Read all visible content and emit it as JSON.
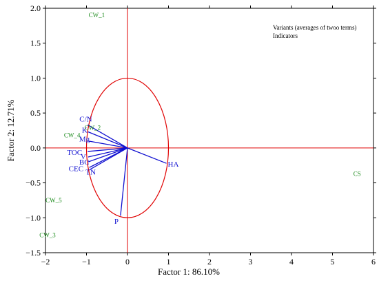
{
  "chart_data": {
    "type": "scatter",
    "subtype": "pca-biplot",
    "xlabel": "Factor 1: 86.10%",
    "ylabel": "Factor 2: 12.71%",
    "xlim": [
      -2,
      6
    ],
    "ylim": [
      -1.5,
      2.0
    ],
    "x_ticks": [
      -2,
      -1,
      0,
      1,
      2,
      3,
      4,
      5,
      6
    ],
    "x_tick_labels": [
      "−2",
      "−1",
      "0",
      "1",
      "2",
      "3",
      "4",
      "5",
      "6"
    ],
    "y_ticks": [
      -1.5,
      -1.0,
      -0.5,
      0.0,
      0.5,
      1.0,
      1.5,
      2.0
    ],
    "y_tick_labels": [
      "−1.5",
      "−1.0",
      "−0.5",
      "0.0",
      "0.5",
      "1.0",
      "1.5",
      "2.0"
    ],
    "grid": false,
    "legend_position": "top-right",
    "legend": [
      "Variants (averages of twoo terms)",
      "Indicators"
    ],
    "unit_circle": true,
    "colors": {
      "axes": "#000000",
      "zero_lines": "#e00000",
      "circle": "#e00000",
      "indicators": "#1010d0",
      "variants": "#1a8a1a"
    },
    "variants": [
      {
        "name": "CW_1",
        "x": -0.75,
        "y": 1.9
      },
      {
        "name": "CW_2",
        "x": -0.85,
        "y": 0.29
      },
      {
        "name": "CW_4",
        "x": -1.35,
        "y": 0.18
      },
      {
        "name": "CW_5",
        "x": -1.8,
        "y": -0.75
      },
      {
        "name": "CW_3",
        "x": -1.95,
        "y": -1.25
      },
      {
        "name": "CS",
        "x": 5.6,
        "y": -0.37
      }
    ],
    "indicators": [
      {
        "name": "C/N",
        "x": -0.97,
        "y": 0.33
      },
      {
        "name": "K",
        "x": -0.96,
        "y": 0.23
      },
      {
        "name": "Mg",
        "x": -0.96,
        "y": 0.1
      },
      {
        "name": "TOC",
        "x": -0.97,
        "y": -0.05
      },
      {
        "name": "V",
        "x": -0.96,
        "y": -0.13
      },
      {
        "name": "BC",
        "x": -0.96,
        "y": -0.2
      },
      {
        "name": "CEC",
        "x": -0.93,
        "y": -0.28
      },
      {
        "name": "TN",
        "x": -0.92,
        "y": -0.31
      },
      {
        "name": "HA",
        "x": 0.95,
        "y": -0.22
      },
      {
        "name": "P",
        "x": -0.17,
        "y": -0.97
      }
    ]
  }
}
